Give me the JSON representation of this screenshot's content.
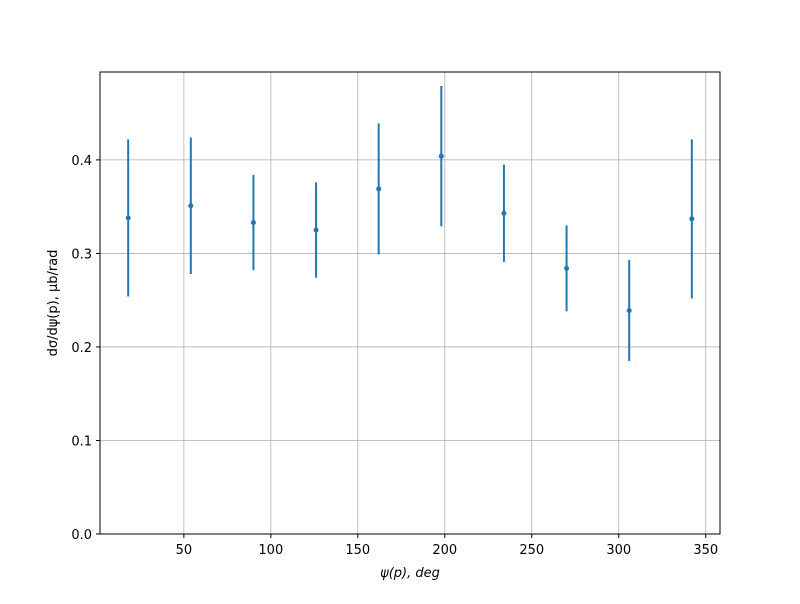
{
  "chart_data": {
    "type": "errorbar",
    "xlabel": "ψ(p), deg",
    "ylabel": "dσ/dψ(p), μb/rad",
    "x": [
      18,
      54,
      90,
      126,
      162,
      198,
      234,
      270,
      306,
      342
    ],
    "series": [
      {
        "color": "#1f77b4",
        "values": [
          0.338,
          0.351,
          0.333,
          0.325,
          0.369,
          0.404,
          0.343,
          0.284,
          0.239,
          0.337
        ],
        "errors": [
          0.084,
          0.073,
          0.051,
          0.051,
          0.07,
          0.075,
          0.052,
          0.046,
          0.054,
          0.085
        ]
      }
    ],
    "xlim": [
      1.8,
      358.2
    ],
    "ylim": [
      0,
      0.494
    ],
    "xticks": [
      50,
      100,
      150,
      200,
      250,
      300,
      350
    ],
    "yticks": [
      {
        "value": 0,
        "label": "0.0"
      },
      0.1,
      0.2,
      0.3,
      0.4
    ],
    "grid": true
  }
}
